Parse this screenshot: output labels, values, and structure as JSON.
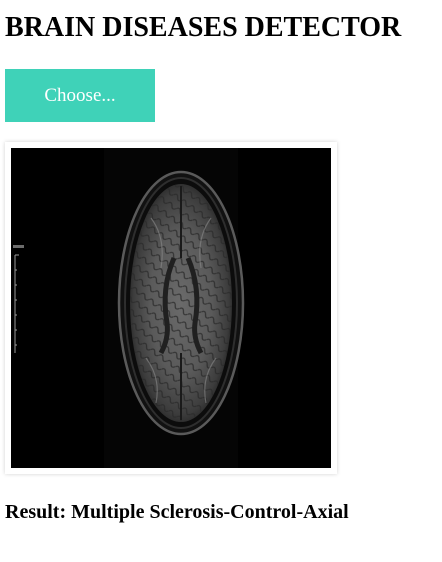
{
  "header": {
    "title": "BRAIN DISEASES DETECTOR"
  },
  "upload": {
    "choose_label": "Choose..."
  },
  "preview": {
    "image_description_name": "brain-mri-axial-scan"
  },
  "result": {
    "label": "Result:",
    "value": "Multiple Sclerosis-Control-Axial"
  },
  "colors": {
    "accent": "#3fd2b8",
    "background": "#ffffff",
    "text": "#000000"
  }
}
